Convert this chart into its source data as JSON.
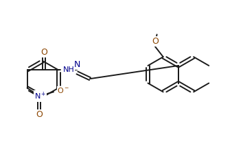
{
  "bg_color": "#ffffff",
  "line_color": "#1a1a1a",
  "N_color": "#00008b",
  "O_color": "#8b4500",
  "figsize": [
    3.54,
    2.31
  ],
  "dpi": 100,
  "lw": 1.4,
  "xlim": [
    0,
    10.5
  ],
  "ylim": [
    0,
    6.5
  ]
}
